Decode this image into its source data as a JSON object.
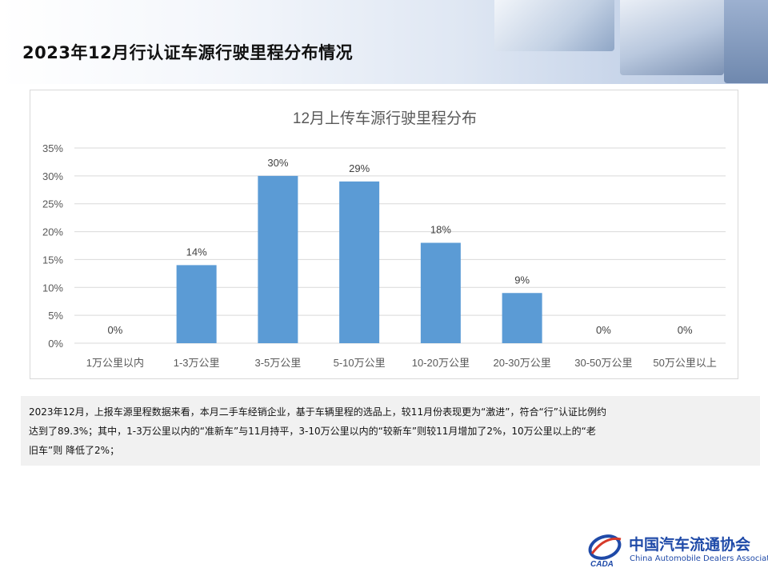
{
  "page": {
    "title": "2023年12月行认证车源行驶里程分布情况"
  },
  "chart_data": {
    "type": "bar",
    "title": "12月上传车源行驶里程分布",
    "categories": [
      "1万公里以内",
      "1-3万公里",
      "3-5万公里",
      "5-10万公里",
      "10-20万公里",
      "20-30万公里",
      "30-50万公里",
      "50万公里以上"
    ],
    "values": [
      0,
      14,
      30,
      29,
      18,
      9,
      0,
      0
    ],
    "data_labels": [
      "0%",
      "14%",
      "30%",
      "29%",
      "18%",
      "9%",
      "0%",
      "0%"
    ],
    "y_ticks": [
      "0%",
      "5%",
      "10%",
      "15%",
      "20%",
      "25%",
      "30%",
      "35%"
    ],
    "ylim": [
      0,
      35
    ],
    "unit": "%",
    "grid": true,
    "legend": "none",
    "bar_color": "#5b9bd5"
  },
  "description": {
    "lines": [
      "2023年12月，上报车源里程数据来看，本月二手车经销企业，基于车辆里程的选品上，较11月份表现更为“激进”，符合“行”认证比例约",
      "达到了89.3%；其中，1-3万公里以内的“准新车”与11月持平，3-10万公里以内的“较新车”则较11月增加了2%，10万公里以上的“老",
      "旧车”则 降低了2%；"
    ]
  },
  "logo": {
    "name_cn": "中国汽车流通协会",
    "name_en": "China Automobile Dealers Association",
    "emblem_text": "CADA"
  },
  "colors": {
    "bar": "#5b9bd5",
    "grid": "#d9d9d9",
    "axis_text": "#595959",
    "brand_blue": "#1f4aa8"
  }
}
